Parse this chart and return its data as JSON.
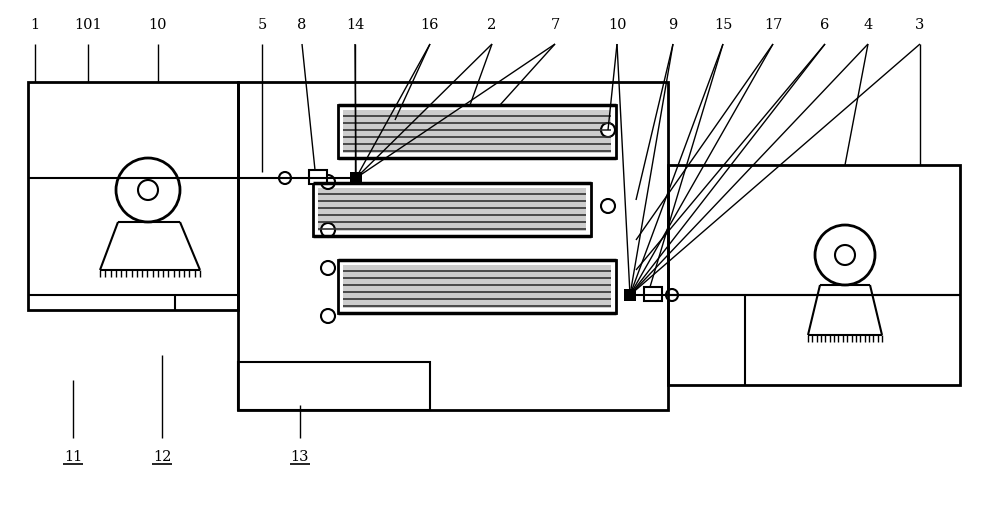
{
  "bg_color": "#ffffff",
  "line_color": "#000000",
  "figure_width": 10.0,
  "figure_height": 5.13
}
